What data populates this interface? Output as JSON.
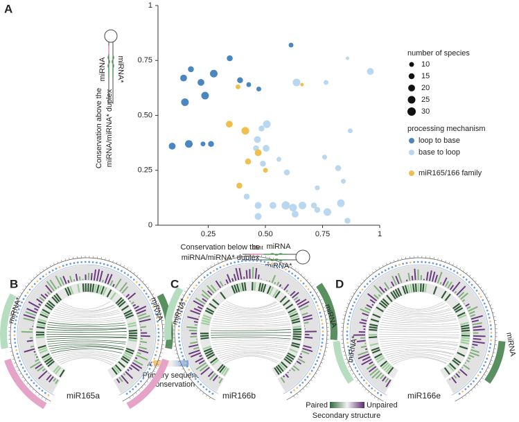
{
  "chart_data": {
    "type": "scatter",
    "panel_label": "A",
    "x_label": [
      "Conservation below the",
      "miRNA/miRNA* duplex"
    ],
    "y_label": [
      "Conservation above the",
      "miRNA/miRNA* duplex"
    ],
    "xlim": [
      0.03,
      1
    ],
    "ylim": [
      0,
      1
    ],
    "xticks": [
      0.25,
      {
        "value": 0.5,
        "label": "0.50"
      },
      0.75,
      1
    ],
    "yticks": [
      0,
      0.25,
      {
        "value": 0.5,
        "label": "0.50"
      },
      0.75,
      1
    ],
    "size_legend": {
      "title": "number of species",
      "values": [
        10,
        15,
        20,
        25,
        30
      ]
    },
    "legend_title": "processing mechanism",
    "series": [
      {
        "name": "loop to base",
        "color": "#4a86c0",
        "x": [
          0.092,
          0.165,
          0.227,
          0.262,
          0.148,
          0.142,
          0.174,
          0.218,
          0.236,
          0.274,
          0.344,
          0.389,
          0.427,
          0.471,
          0.612
        ],
        "values": [
          0.36,
          0.37,
          0.37,
          0.37,
          0.56,
          0.67,
          0.71,
          0.65,
          0.59,
          0.69,
          0.76,
          0.66,
          0.64,
          0.62,
          0.82
        ],
        "sizes": [
          20,
          25,
          10,
          15,
          25,
          20,
          15,
          20,
          25,
          25,
          15,
          15,
          10,
          10,
          10
        ]
      },
      {
        "name": "base to loop",
        "color": "#b9d7ee",
        "x": [
          0.483,
          0.465,
          0.459,
          0.506,
          0.503,
          0.559,
          0.489,
          0.533,
          0.418,
          0.468,
          0.589,
          0.621,
          0.662,
          0.63,
          0.712,
          0.727,
          0.468,
          0.727,
          0.771,
          0.83,
          0.859,
          0.818,
          0.759,
          0.636,
          0.765,
          0.859,
          0.871,
          0.959,
          0.841,
          0.594
        ],
        "values": [
          0.44,
          0.39,
          0.35,
          0.46,
          0.35,
          0.3,
          0.28,
          0.09,
          0.13,
          0.09,
          0.09,
          0.08,
          0.09,
          0.05,
          0.09,
          0.07,
          0.04,
          0.17,
          0.06,
          0.1,
          0.02,
          0.26,
          0.31,
          0.65,
          0.65,
          0.76,
          0.43,
          0.7,
          0.2,
          0.24
        ],
        "sizes": [
          15,
          20,
          15,
          25,
          20,
          10,
          15,
          20,
          15,
          20,
          30,
          25,
          25,
          20,
          15,
          15,
          20,
          10,
          25,
          25,
          15,
          15,
          10,
          25,
          10,
          5,
          10,
          20,
          10,
          15
        ]
      },
      {
        "name": "miR165/166 family",
        "color": "#f0c04e",
        "x": [
          0.38,
          0.342,
          0.412,
          0.468,
          0.424,
          0.386,
          0.5,
          0.66
        ],
        "values": [
          0.63,
          0.46,
          0.43,
          0.33,
          0.29,
          0.18,
          0.25,
          0.64
        ],
        "sizes": [
          10,
          20,
          25,
          20,
          15,
          15,
          10,
          5
        ]
      }
    ]
  },
  "diagrams": {
    "upper": {
      "strand": "miRNA",
      "star": "miRNA*"
    },
    "lower": {
      "offset": "15nt",
      "strand": "miRNA",
      "star": "miRNA*"
    }
  },
  "circos": [
    {
      "panel": "B",
      "name": "miR165a",
      "left_arm": "miRNA*",
      "right_arm": "miRNA"
    },
    {
      "panel": "C",
      "name": "miR166b",
      "left_arm": "miRNA*",
      "right_arm": "miRNA"
    },
    {
      "panel": "D",
      "name": "miR166e",
      "left_arm": "miRNA*",
      "right_arm": "miRNA"
    }
  ],
  "legends": {
    "conservation": {
      "low": "Low",
      "high": "High",
      "title": [
        "Primary sequence",
        "conservation"
      ]
    },
    "structure": {
      "low": "Paired",
      "high": "Unpaired",
      "title": "Secondary structure"
    }
  }
}
